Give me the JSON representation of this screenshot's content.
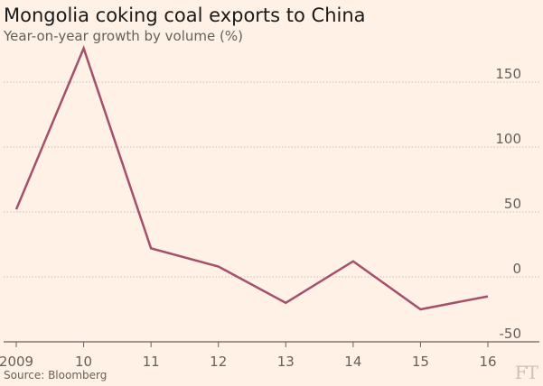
{
  "title": "Mongolia coking coal exports to China",
  "subtitle": "Year-on-year growth by volume (%)",
  "source": "Source: Bloomberg",
  "logo": "FT",
  "colors": {
    "background": "#fff1e5",
    "line": "#a4506c",
    "grid": "#c8c0b8",
    "axis": "#66605c",
    "text": "#66605c"
  },
  "chart_data": {
    "type": "line",
    "title": "Mongolia coking coal exports to China",
    "subtitle": "Year-on-year growth by volume (%)",
    "x": [
      "2009",
      "10",
      "11",
      "12",
      "13",
      "14",
      "15",
      "16"
    ],
    "series": [
      {
        "values": [
          52,
          176,
          22,
          8,
          -20,
          12,
          -25,
          -15
        ]
      }
    ],
    "y_ticks": [
      150,
      100,
      50,
      0,
      -50
    ],
    "ylim": [
      -50,
      180
    ],
    "grid": true,
    "y_axis_position": "right"
  }
}
